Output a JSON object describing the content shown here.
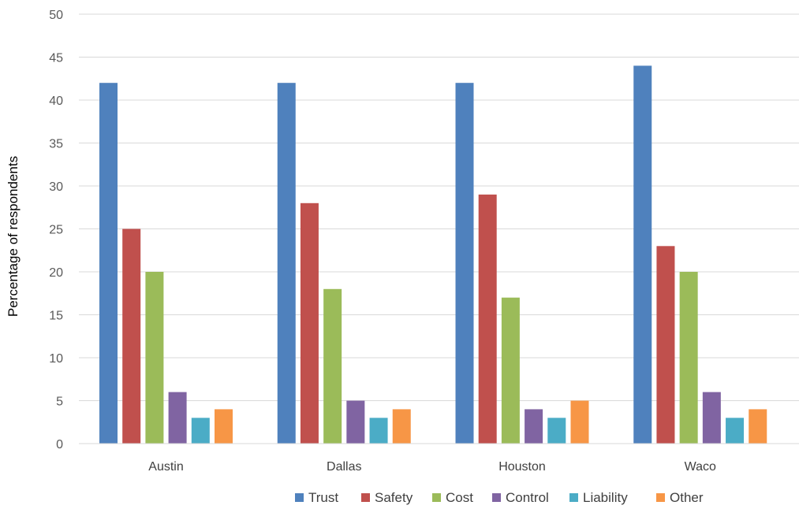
{
  "chart_data": {
    "type": "bar",
    "title": "",
    "xlabel": "",
    "ylabel": "Percentage  of respondents",
    "ylim": [
      0,
      50
    ],
    "ytick_step": 5,
    "grid": true,
    "legend_position": "bottom",
    "categories": [
      "Austin",
      "Dallas",
      "Houston",
      "Waco"
    ],
    "series": [
      {
        "name": "Trust",
        "color": "#4f81bd",
        "values": [
          42,
          42,
          42,
          44
        ]
      },
      {
        "name": "Safety",
        "color": "#c0504d",
        "values": [
          25,
          28,
          29,
          23
        ]
      },
      {
        "name": "Cost",
        "color": "#9bbb59",
        "values": [
          20,
          18,
          17,
          20
        ]
      },
      {
        "name": "Control",
        "color": "#8064a2",
        "values": [
          6,
          5,
          4,
          6
        ]
      },
      {
        "name": "Liability",
        "color": "#4bacc6",
        "values": [
          3,
          3,
          3,
          3
        ]
      },
      {
        "name": "Other",
        "color": "#f79646",
        "values": [
          4,
          4,
          5,
          4
        ]
      }
    ]
  }
}
